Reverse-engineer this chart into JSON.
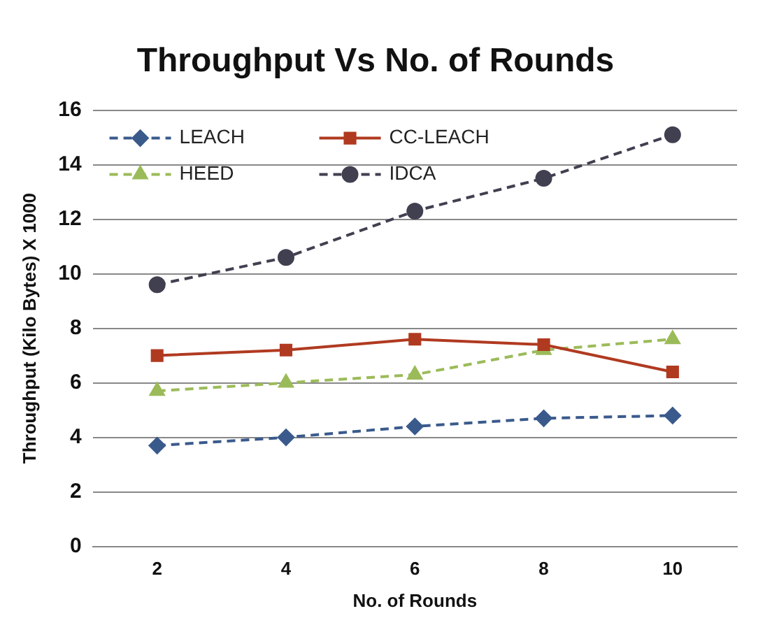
{
  "chart_data": {
    "type": "line",
    "title": "Throughput Vs No. of Rounds",
    "xlabel": "No. of Rounds",
    "ylabel": "Throughput (Kilo Bytes) X 1000",
    "categories": [
      "2",
      "4",
      "6",
      "8",
      "10"
    ],
    "series": [
      {
        "name": "LEACH",
        "color": "#3a5a8c",
        "values": [
          3.7,
          4.0,
          4.4,
          4.7,
          4.8
        ],
        "marker": "diamond",
        "line_style": "dashed"
      },
      {
        "name": "CC-LEACH",
        "color": "#b03a20",
        "values": [
          7.0,
          7.2,
          7.6,
          7.4,
          6.4
        ],
        "marker": "square",
        "line_style": "solid"
      },
      {
        "name": "HEED",
        "color": "#9bbb59",
        "values": [
          5.7,
          6.0,
          6.3,
          7.2,
          7.6
        ],
        "marker": "triangle",
        "line_style": "dashed"
      },
      {
        "name": "IDCA",
        "color": "#404050",
        "values": [
          9.6,
          10.6,
          12.3,
          13.5,
          15.1
        ],
        "marker": "circle",
        "line_style": "dashed"
      }
    ],
    "ylim": [
      0,
      16
    ],
    "yticks": [
      0,
      2,
      4,
      6,
      8,
      10,
      12,
      14,
      16
    ],
    "grid": "y",
    "legend": "top left"
  }
}
